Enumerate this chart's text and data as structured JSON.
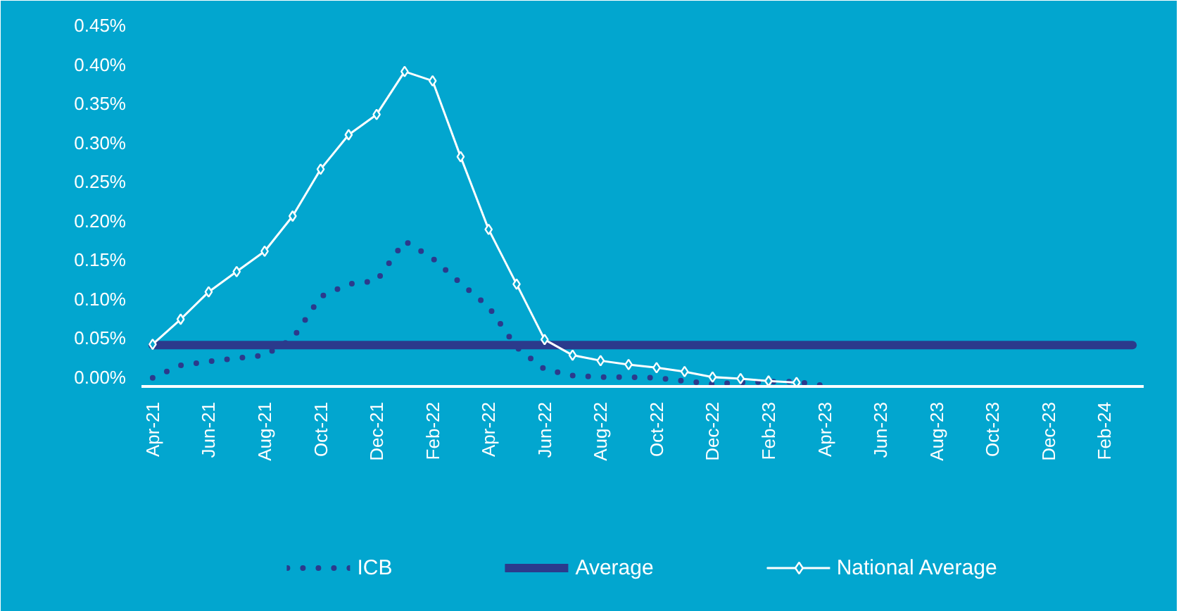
{
  "chart_data": {
    "type": "line",
    "categories": [
      "Apr-21",
      null,
      "Jun-21",
      null,
      "Aug-21",
      null,
      "Oct-21",
      null,
      "Dec-21",
      null,
      "Feb-22",
      null,
      "Apr-22",
      null,
      "Jun-22",
      null,
      "Aug-22",
      null,
      "Oct-22",
      null,
      "Dec-22",
      null,
      "Feb-23",
      null,
      "Apr-23",
      null,
      "Jun-23",
      null,
      "Aug-23",
      null,
      "Oct-23",
      null,
      "Dec-23",
      null,
      "Feb-24",
      null
    ],
    "series": [
      {
        "name": "ICB",
        "color": "#2b3a8c",
        "line_style": "dotted",
        "marker": "none",
        "values": [
          -0.001,
          0.015,
          0.02,
          0.024,
          0.028,
          0.049,
          0.103,
          0.119,
          0.123,
          0.174,
          0.152,
          0.12,
          0.09,
          0.038,
          0.01,
          0.002,
          0.0,
          0.0,
          -0.001,
          -0.005,
          -0.009,
          -0.007,
          -0.006,
          -0.006,
          -0.011,
          null,
          null,
          null,
          null,
          null,
          null,
          null,
          null,
          null,
          null,
          null
        ]
      },
      {
        "name": "Average",
        "color": "#2b3a8c",
        "line_style": "solid",
        "marker": "none",
        "values": [
          0.041,
          0.041,
          0.041,
          0.041,
          0.041,
          0.041,
          0.041,
          0.041,
          0.041,
          0.041,
          0.041,
          0.041,
          0.041,
          0.041,
          0.041,
          0.041,
          0.041,
          0.041,
          0.041,
          0.041,
          0.041,
          0.041,
          0.041,
          0.041,
          0.041,
          0.041,
          0.041,
          0.041,
          0.041,
          0.041,
          0.041,
          0.041,
          0.041,
          0.041,
          0.041,
          0.041
        ]
      },
      {
        "name": "National Average",
        "color": "#ffffff",
        "line_style": "solid",
        "marker": "diamond",
        "values": [
          0.042,
          0.074,
          0.109,
          0.135,
          0.161,
          0.206,
          0.266,
          0.31,
          0.336,
          0.391,
          0.379,
          0.282,
          0.189,
          0.119,
          0.048,
          0.028,
          0.021,
          0.016,
          0.012,
          0.007,
          0.0,
          -0.002,
          -0.005,
          -0.007,
          null,
          null,
          null,
          null,
          null,
          null,
          null,
          null,
          null,
          null,
          null,
          null
        ]
      }
    ],
    "ylim": [
      -0.012,
      0.46
    ],
    "yticks": [
      {
        "value": 0,
        "label": "0.00%"
      },
      {
        "value": 0.05,
        "label": "0.05%"
      },
      {
        "value": 0.1,
        "label": "0.10%"
      },
      {
        "value": 0.15,
        "label": "0.15%"
      },
      {
        "value": 0.2,
        "label": "0.20%"
      },
      {
        "value": 0.25,
        "label": "0.25%"
      },
      {
        "value": 0.3,
        "label": "0.30%"
      },
      {
        "value": 0.35,
        "label": "0.35%"
      },
      {
        "value": 0.4,
        "label": "0.40%"
      },
      {
        "value": 0.45,
        "label": "0.45%"
      }
    ],
    "grid": false,
    "legend": "bottom"
  }
}
